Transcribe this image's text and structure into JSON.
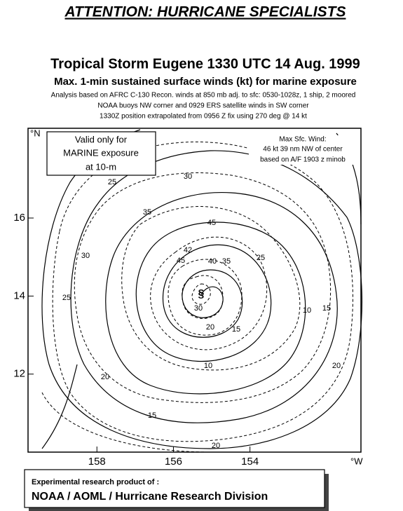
{
  "header": {
    "title": "ATTENTION: HURRICANE SPECIALISTS"
  },
  "map": {
    "title": "Tropical Storm Eugene 1330 UTC 14 Aug. 1999",
    "subtitle": "Max. 1-min sustained surface winds (kt) for marine exposure",
    "notes": [
      "Analysis based on AFRC C-130  Recon. winds at 850 mb adj. to sfc: 0530-1028z,   1 ship, 2 moored",
      "NOAA buoys NW corner and 0929 ERS  satellite winds in SW corner",
      "1330Z  position extrapolated from 0956 Z fix  using 270 deg @  14 kt"
    ],
    "validity": [
      "Valid only for",
      "MARINE exposure",
      "at 10-m"
    ],
    "max_wind": [
      "Max Sfc. Wind:",
      "46 kt  39 nm NW of center",
      "based on A/F 1903 z minob"
    ],
    "xlim": [
      159.8,
      151.1
    ],
    "ylim": [
      10,
      18.3
    ],
    "xticks": [
      158,
      156,
      154
    ],
    "yticks": [
      16,
      14,
      12
    ],
    "x_unit": "°W",
    "y_unit": "°N",
    "contour_labels": [
      25,
      30,
      35,
      45,
      30,
      42,
      45,
      40,
      35,
      25,
      25,
      30,
      20,
      15,
      10,
      15,
      10,
      20,
      20,
      15,
      20
    ]
  },
  "footer": [
    "Experimental research product of :",
    "NOAA / AOML / Hurricane Research Division"
  ]
}
